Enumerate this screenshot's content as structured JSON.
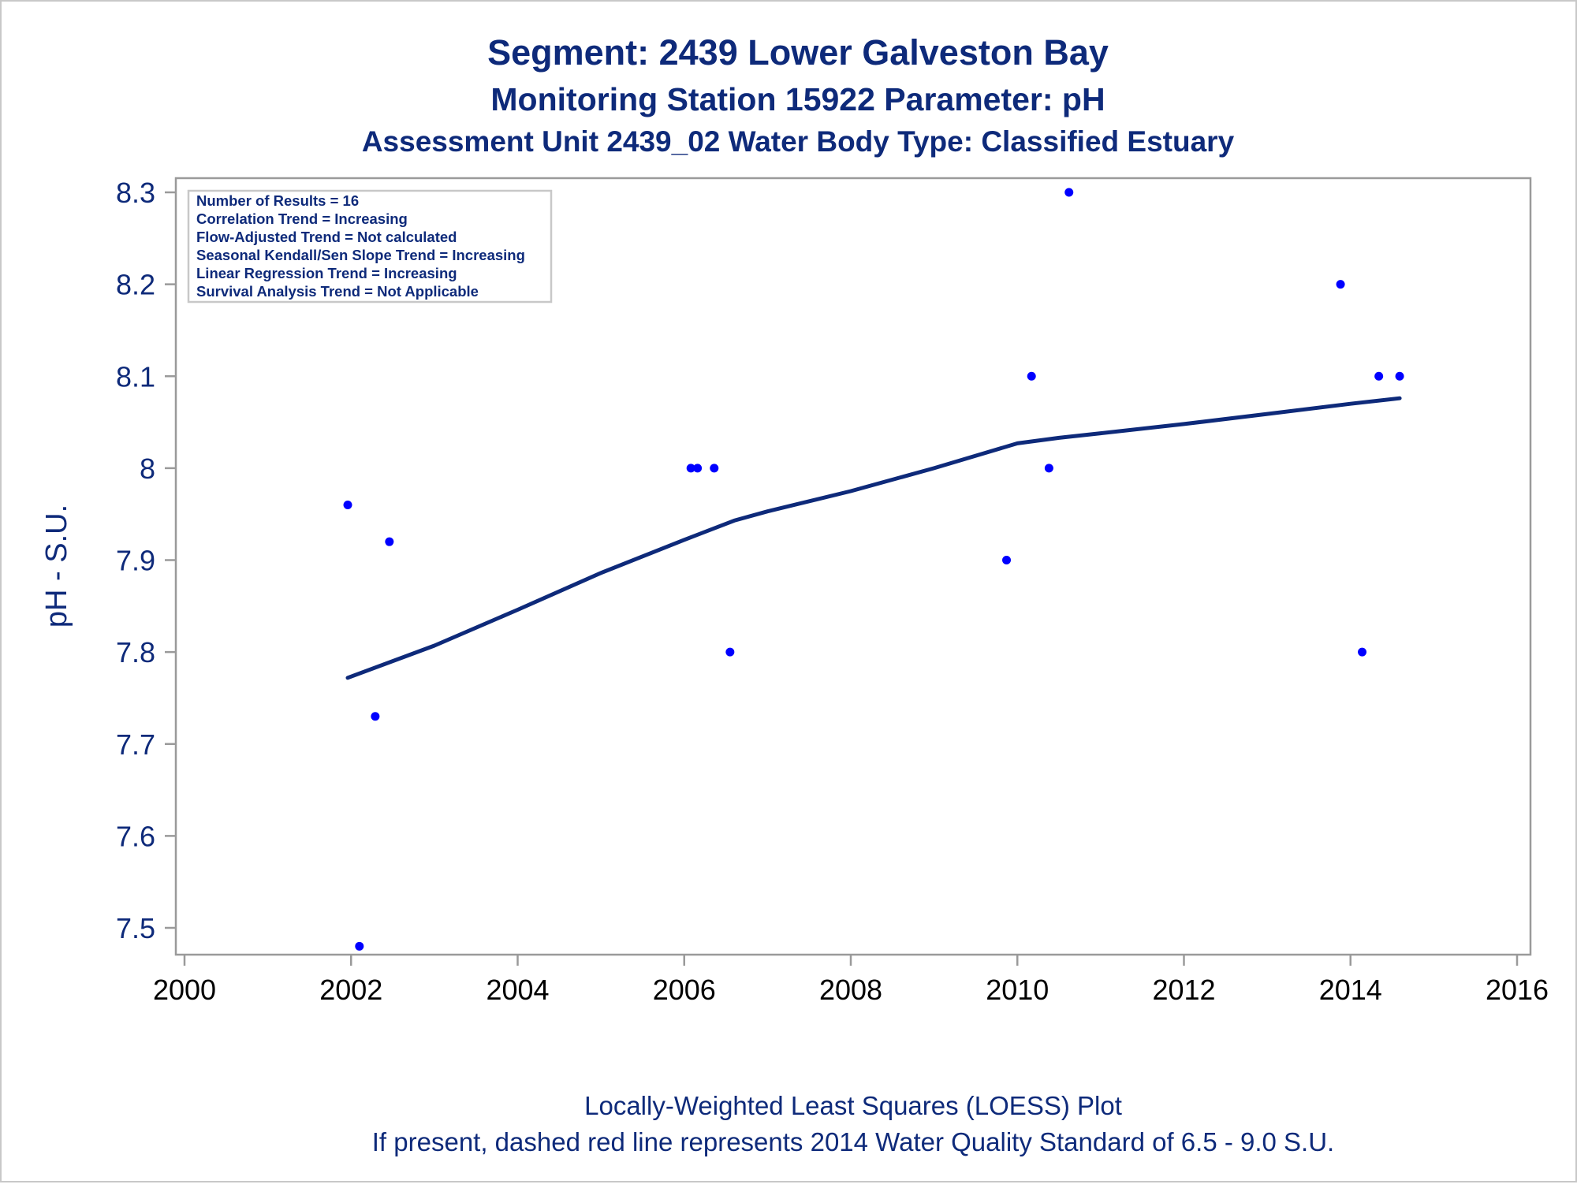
{
  "chart_data": {
    "type": "scatter",
    "title": "Segment: 2439  Lower Galveston Bay",
    "subtitle": "Monitoring Station 15922 Parameter: pH",
    "subtitle2": "Assessment Unit 2439_02   Water Body Type: Classified Estuary",
    "xlabel": "",
    "ylabel": "pH - S.U.",
    "xlim": [
      2000,
      2016
    ],
    "ylim": [
      7.47,
      8.315
    ],
    "x_ticks": [
      "2000",
      "2002",
      "2004",
      "2006",
      "2008",
      "2010",
      "2012",
      "2014",
      "2016"
    ],
    "y_ticks": [
      "7.5",
      "7.6",
      "7.7",
      "7.8",
      "7.9",
      "8",
      "8.1",
      "8.2",
      "8.3"
    ],
    "grid": false,
    "marker_color": "#0000ff",
    "line_color": "#0e2a7a",
    "points": [
      {
        "x": 2001.96,
        "y": 7.96
      },
      {
        "x": 2002.1,
        "y": 7.48
      },
      {
        "x": 2002.29,
        "y": 7.73
      },
      {
        "x": 2002.46,
        "y": 7.92
      },
      {
        "x": 2006.08,
        "y": 8.0
      },
      {
        "x": 2006.16,
        "y": 8.0
      },
      {
        "x": 2006.36,
        "y": 8.0
      },
      {
        "x": 2006.55,
        "y": 7.8
      },
      {
        "x": 2009.87,
        "y": 7.9
      },
      {
        "x": 2010.17,
        "y": 8.1
      },
      {
        "x": 2010.38,
        "y": 8.0
      },
      {
        "x": 2010.62,
        "y": 8.3
      },
      {
        "x": 2013.88,
        "y": 8.2
      },
      {
        "x": 2014.14,
        "y": 7.8
      },
      {
        "x": 2014.34,
        "y": 8.1
      },
      {
        "x": 2014.59,
        "y": 8.1
      }
    ],
    "loess_curve": [
      {
        "x": 2001.96,
        "y": 7.772
      },
      {
        "x": 2003.0,
        "y": 7.807
      },
      {
        "x": 2004.0,
        "y": 7.846
      },
      {
        "x": 2005.0,
        "y": 7.886
      },
      {
        "x": 2006.0,
        "y": 7.922
      },
      {
        "x": 2006.6,
        "y": 7.943
      },
      {
        "x": 2007.0,
        "y": 7.953
      },
      {
        "x": 2008.0,
        "y": 7.975
      },
      {
        "x": 2009.0,
        "y": 8.0
      },
      {
        "x": 2010.0,
        "y": 8.027
      },
      {
        "x": 2010.5,
        "y": 8.033
      },
      {
        "x": 2011.0,
        "y": 8.038
      },
      {
        "x": 2012.0,
        "y": 8.048
      },
      {
        "x": 2013.0,
        "y": 8.059
      },
      {
        "x": 2014.0,
        "y": 8.07
      },
      {
        "x": 2014.59,
        "y": 8.076
      }
    ],
    "annotations": [
      "Number of Results = 16",
      "Correlation Trend = Increasing",
      "Flow-Adjusted Trend = Not calculated",
      "Seasonal Kendall/Sen Slope Trend = Increasing",
      "Linear Regression Trend = Increasing",
      "Survival Analysis Trend = Not Applicable"
    ],
    "footnotes": [
      "Locally-Weighted Least Squares (LOESS) Plot",
      "If present, dashed red line represents 2014 Water Quality Standard of 6.5 - 9.0 S.U."
    ]
  }
}
